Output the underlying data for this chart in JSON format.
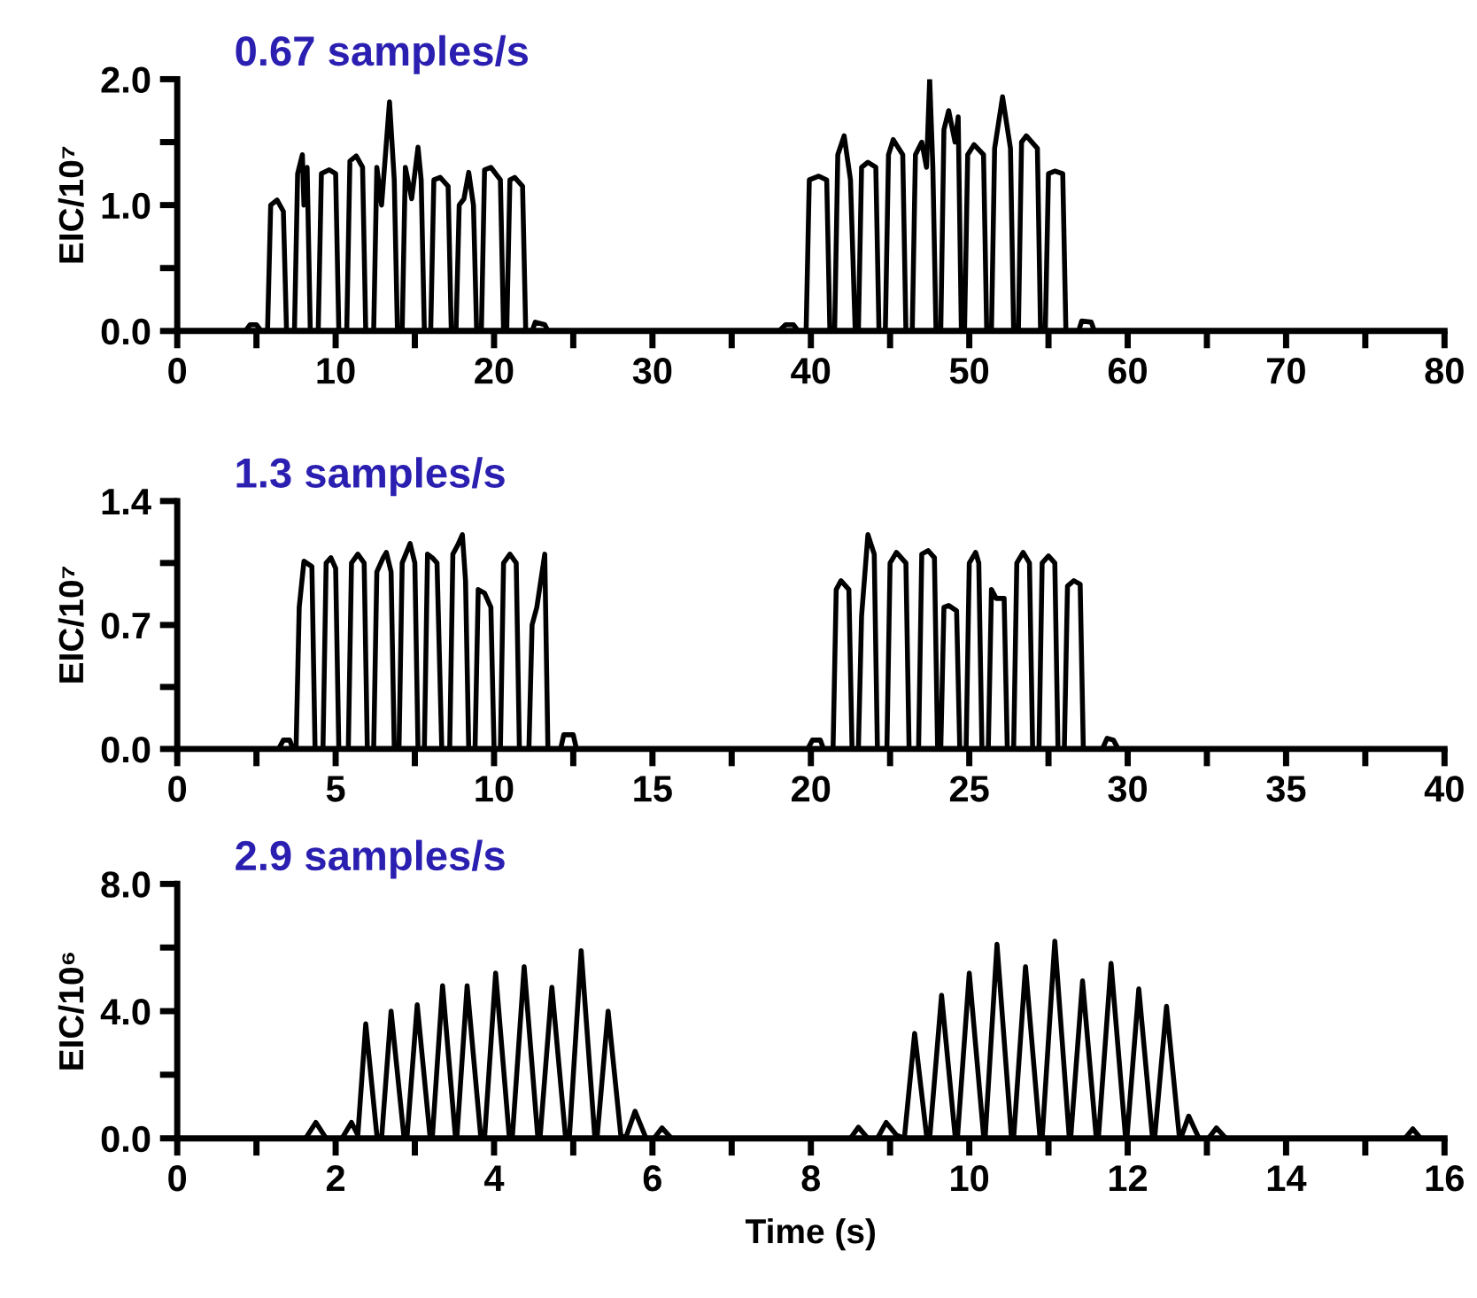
{
  "chart_data": [
    {
      "type": "line",
      "title": "0.67 samples/s",
      "ylabel": "EIC/10⁷",
      "xlim": [
        0,
        80
      ],
      "ylim": [
        0,
        2.0
      ],
      "xticks": [
        0,
        {
          "value": 5,
          "label": null
        },
        10,
        {
          "value": 15,
          "label": null
        },
        20,
        {
          "value": 25,
          "label": null
        },
        30,
        {
          "value": 35,
          "label": null
        },
        40,
        {
          "value": 45,
          "label": null
        },
        50,
        {
          "value": 55,
          "label": null
        },
        60,
        {
          "value": 65,
          "label": null
        },
        70,
        {
          "value": 75,
          "label": null
        },
        80
      ],
      "yticks": [
        {
          "value": 0,
          "label": "0.0"
        },
        {
          "value": 0.5,
          "label": null
        },
        {
          "value": 1.0,
          "label": "1.0"
        },
        {
          "value": 1.5,
          "label": null
        },
        {
          "value": 2.0,
          "label": "2.0"
        }
      ],
      "grid": false,
      "marker": "none",
      "line_style": "solid",
      "series": [
        {
          "color": "#000000",
          "x": [
            0,
            4.3,
            4.6,
            5.0,
            5.3,
            5.7,
            5.9,
            6.3,
            6.7,
            6.9,
            7.4,
            7.6,
            7.9,
            8.0,
            8.2,
            8.4,
            8.9,
            9.1,
            9.6,
            10.0,
            10.2,
            10.7,
            10.9,
            11.3,
            11.7,
            11.9,
            12.4,
            12.6,
            12.9,
            13.4,
            13.7,
            13.9,
            14.2,
            14.4,
            14.8,
            15.2,
            15.4,
            15.6,
            16.0,
            16.2,
            16.6,
            17.1,
            17.3,
            17.6,
            17.8,
            18.1,
            18.4,
            18.7,
            18.9,
            19.2,
            19.4,
            19.8,
            20.4,
            20.6,
            20.8,
            21.0,
            21.3,
            21.8,
            22.0,
            22.4,
            22.6,
            23.2,
            23.4,
            38.0,
            38.4,
            38.9,
            39.2,
            39.7,
            39.9,
            40.5,
            41.0,
            41.2,
            41.5,
            41.7,
            42.1,
            42.5,
            42.8,
            43.0,
            43.2,
            43.6,
            44.1,
            44.3,
            44.7,
            44.9,
            45.2,
            45.8,
            46.0,
            46.4,
            46.6,
            47.0,
            47.3,
            47.5,
            47.7,
            47.9,
            48.2,
            48.4,
            48.7,
            49.1,
            49.3,
            49.5,
            49.7,
            49.9,
            50.3,
            50.9,
            51.1,
            51.4,
            51.6,
            52.1,
            52.6,
            52.8,
            53.1,
            53.3,
            53.6,
            54.3,
            54.5,
            54.8,
            55.0,
            55.4,
            55.9,
            56.1,
            56.9,
            57.1,
            57.7,
            57.9,
            80
          ],
          "values": [
            0,
            0,
            0.05,
            0.05,
            0,
            0,
            1.0,
            1.04,
            0.95,
            0,
            0,
            1.25,
            1.4,
            1.0,
            1.3,
            0,
            0,
            1.25,
            1.28,
            1.25,
            0,
            0,
            1.35,
            1.39,
            1.3,
            0,
            0,
            1.3,
            1.0,
            1.82,
            1.2,
            0,
            0,
            1.3,
            1.05,
            1.46,
            1.2,
            0,
            0,
            1.2,
            1.22,
            1.15,
            0,
            0,
            1.0,
            1.05,
            1.26,
            1.0,
            0,
            0,
            1.28,
            1.3,
            1.2,
            0,
            0,
            1.2,
            1.22,
            1.15,
            0,
            0,
            0.07,
            0.05,
            0,
            0,
            0.05,
            0.05,
            0,
            0,
            1.2,
            1.23,
            1.2,
            0,
            0,
            1.4,
            1.55,
            1.2,
            0,
            0,
            1.3,
            1.34,
            1.3,
            0,
            0,
            1.4,
            1.52,
            1.4,
            0,
            0,
            1.4,
            1.5,
            1.3,
            2.0,
            1.3,
            0,
            0,
            1.6,
            1.75,
            1.5,
            1.7,
            0,
            0,
            1.4,
            1.48,
            1.4,
            0,
            0,
            1.45,
            1.86,
            1.45,
            0,
            0,
            1.5,
            1.55,
            1.45,
            0,
            0,
            1.25,
            1.27,
            1.25,
            0,
            0,
            0.08,
            0.07,
            0,
            0
          ]
        }
      ]
    },
    {
      "type": "line",
      "title": "1.3 samples/s",
      "ylabel": "EIC/10⁷",
      "xlim": [
        0,
        40
      ],
      "ylim": [
        0,
        1.4
      ],
      "xticks": [
        0,
        {
          "value": 2.5,
          "label": null
        },
        5,
        {
          "value": 7.5,
          "label": null
        },
        10,
        {
          "value": 12.5,
          "label": null
        },
        15,
        {
          "value": 17.5,
          "label": null
        },
        20,
        {
          "value": 22.5,
          "label": null
        },
        25,
        {
          "value": 27.5,
          "label": null
        },
        30,
        {
          "value": 32.5,
          "label": null
        },
        35,
        {
          "value": 37.5,
          "label": null
        },
        40
      ],
      "yticks": [
        {
          "value": 0,
          "label": "0.0"
        },
        {
          "value": 0.35,
          "label": null
        },
        0.7,
        {
          "value": 1.05,
          "label": null
        },
        1.4
      ],
      "grid": false,
      "marker": "none",
      "line_style": "solid",
      "series": [
        {
          "color": "#000000",
          "x": [
            0,
            3.2,
            3.35,
            3.55,
            3.65,
            3.75,
            3.85,
            4.0,
            4.25,
            4.35,
            4.6,
            4.7,
            4.85,
            5.0,
            5.1,
            5.4,
            5.5,
            5.7,
            5.9,
            6.0,
            6.2,
            6.3,
            6.5,
            6.6,
            6.75,
            6.85,
            7.0,
            7.1,
            7.35,
            7.5,
            7.6,
            7.8,
            7.9,
            8.05,
            8.2,
            8.35,
            8.6,
            8.7,
            8.85,
            9.0,
            9.1,
            9.2,
            9.4,
            9.5,
            9.7,
            9.9,
            10.0,
            10.2,
            10.3,
            10.5,
            10.7,
            10.8,
            11.1,
            11.2,
            11.35,
            11.6,
            11.7,
            12.1,
            12.2,
            12.5,
            12.6,
            19.9,
            20.05,
            20.3,
            20.4,
            20.7,
            20.8,
            20.95,
            21.2,
            21.3,
            21.5,
            21.6,
            21.8,
            22.0,
            22.1,
            22.4,
            22.5,
            22.7,
            23.0,
            23.1,
            23.4,
            23.5,
            23.7,
            23.9,
            24.0,
            24.1,
            24.2,
            24.35,
            24.6,
            24.7,
            24.9,
            25.0,
            25.2,
            25.3,
            25.4,
            25.6,
            25.7,
            25.85,
            26.1,
            26.2,
            26.4,
            26.5,
            26.7,
            26.9,
            27.0,
            27.2,
            27.3,
            27.5,
            27.7,
            27.8,
            28.0,
            28.1,
            28.3,
            28.5,
            28.6,
            29.2,
            29.35,
            29.55,
            29.7,
            40
          ],
          "values": [
            0,
            0,
            0.05,
            0.05,
            0,
            0,
            0.8,
            1.06,
            1.03,
            0,
            0,
            1.05,
            1.08,
            1.02,
            0,
            0,
            1.05,
            1.1,
            1.05,
            0,
            0,
            1.0,
            1.08,
            1.11,
            1.0,
            0,
            0,
            1.05,
            1.16,
            1.05,
            0,
            0,
            1.1,
            1.08,
            1.05,
            0,
            0,
            1.1,
            1.15,
            1.21,
            0.95,
            0,
            0,
            0.9,
            0.88,
            0.8,
            0,
            0,
            1.05,
            1.1,
            1.05,
            0,
            0,
            0.7,
            0.8,
            1.1,
            0,
            0,
            0.08,
            0.08,
            0,
            0,
            0.05,
            0.05,
            0,
            0,
            0.9,
            0.95,
            0.9,
            0,
            0,
            0.75,
            1.21,
            1.1,
            0,
            0,
            1.05,
            1.11,
            1.05,
            0,
            0,
            1.1,
            1.12,
            1.08,
            0,
            0,
            0.8,
            0.81,
            0.78,
            0,
            0,
            1.05,
            1.11,
            1.05,
            0,
            0,
            0.9,
            0.85,
            0.85,
            0,
            0,
            1.05,
            1.11,
            1.05,
            0,
            0,
            1.05,
            1.09,
            1.05,
            0,
            0,
            0.92,
            0.95,
            0.93,
            0,
            0,
            0.06,
            0.05,
            0,
            0
          ]
        }
      ]
    },
    {
      "type": "line",
      "title": "2.9 samples/s",
      "ylabel": "EIC/10⁶",
      "xlabel": "Time (s)",
      "xlim": [
        0,
        16
      ],
      "ylim": [
        0,
        8.0
      ],
      "xticks": [
        0,
        {
          "value": 1,
          "label": null
        },
        2,
        {
          "value": 3,
          "label": null
        },
        4,
        {
          "value": 5,
          "label": null
        },
        6,
        {
          "value": 7,
          "label": null
        },
        8,
        {
          "value": 9,
          "label": null
        },
        10,
        {
          "value": 11,
          "label": null
        },
        12,
        {
          "value": 13,
          "label": null
        },
        14,
        {
          "value": 15,
          "label": null
        },
        16
      ],
      "yticks": [
        {
          "value": 0,
          "label": "0.0"
        },
        {
          "value": 2,
          "label": null
        },
        {
          "value": 4,
          "label": "4.0"
        },
        {
          "value": 6,
          "label": null
        },
        {
          "value": 8,
          "label": "8.0"
        }
      ],
      "grid": false,
      "marker": "none",
      "line_style": "solid",
      "series": [
        {
          "color": "#000000",
          "x": [
            0,
            1.62,
            1.75,
            1.88,
            2.08,
            2.2,
            2.28,
            2.38,
            2.52,
            2.58,
            2.7,
            2.86,
            2.9,
            3.03,
            3.19,
            3.22,
            3.35,
            3.51,
            3.53,
            3.66,
            3.83,
            3.88,
            4.02,
            4.19,
            4.23,
            4.38,
            4.55,
            4.58,
            4.73,
            4.9,
            4.95,
            5.1,
            5.27,
            5.3,
            5.44,
            5.6,
            5.66,
            5.78,
            5.92,
            6.02,
            6.12,
            6.24,
            8.5,
            8.6,
            8.72,
            8.84,
            8.95,
            9.08,
            9.18,
            9.31,
            9.46,
            9.5,
            9.65,
            9.82,
            9.85,
            10.0,
            10.18,
            10.2,
            10.35,
            10.53,
            10.56,
            10.71,
            10.89,
            10.92,
            11.08,
            11.26,
            11.28,
            11.43,
            11.6,
            11.63,
            11.79,
            11.97,
            11.99,
            12.14,
            12.31,
            12.34,
            12.49,
            12.65,
            12.67,
            12.77,
            12.9,
            13.02,
            13.12,
            13.24,
            15.5,
            15.6,
            15.7,
            16
          ],
          "values": [
            0,
            0,
            0.5,
            0,
            0,
            0.5,
            0.1,
            3.6,
            0.1,
            0,
            4.0,
            0.1,
            0,
            4.2,
            0.1,
            0,
            4.8,
            0.1,
            0,
            4.8,
            0.1,
            0,
            5.2,
            0.1,
            0,
            5.4,
            0.1,
            0,
            4.75,
            0.1,
            0,
            5.9,
            0.1,
            0,
            4.0,
            0.1,
            0,
            0.85,
            0,
            0,
            0.33,
            0,
            0,
            0.35,
            0,
            0,
            0.5,
            0.1,
            0,
            3.3,
            0.1,
            0,
            4.5,
            0.1,
            0,
            5.2,
            0.1,
            0,
            6.1,
            0.1,
            0,
            5.4,
            0.1,
            0,
            6.2,
            0.1,
            0,
            4.95,
            0.1,
            0,
            5.5,
            0.1,
            0,
            4.7,
            0.1,
            0,
            4.15,
            0.1,
            0,
            0.7,
            0,
            0,
            0.33,
            0,
            0,
            0.3,
            0,
            0
          ]
        }
      ]
    }
  ]
}
